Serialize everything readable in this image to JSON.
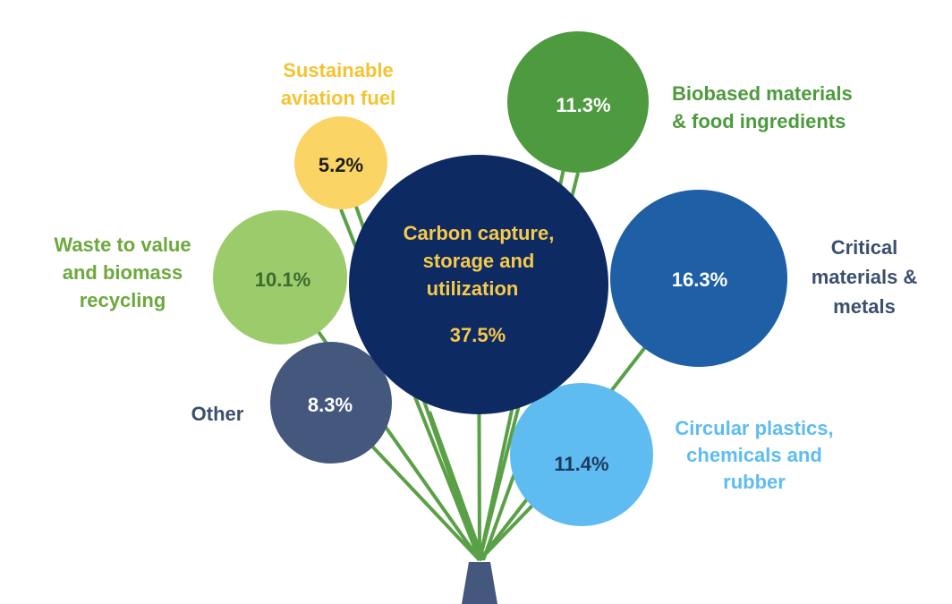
{
  "chart_data": {
    "type": "bubble",
    "unit": "%",
    "items": [
      {
        "label_lines": [
          "Carbon capture,",
          "storage and",
          "utilization"
        ],
        "value_text": "37.5%",
        "value": 37.5,
        "color": "#0d2a62",
        "text_color": "#f7c94a"
      },
      {
        "label_lines": [
          "Critical",
          "materials &",
          "metals"
        ],
        "value_text": "16.3%",
        "value": 16.3,
        "color": "#1f5fa5",
        "text_color": "#ffffff",
        "label_color": "#3b4f6e"
      },
      {
        "label_lines": [
          "Circular plastics,",
          "chemicals and",
          "rubber"
        ],
        "value_text": "11.4%",
        "value": 11.4,
        "color": "#5ebcf0",
        "text_color": "#1e3a5f",
        "label_color": "#5ebcf0"
      },
      {
        "label_lines": [
          "Biobased materials",
          "& food ingredients"
        ],
        "value_text": "11.3%",
        "value": 11.3,
        "color": "#4e9a3e",
        "text_color": "#ffffff",
        "label_color": "#4e9a3e"
      },
      {
        "label_lines": [
          "Waste to value",
          "and biomass",
          "recycling"
        ],
        "value_text": "10.1%",
        "value": 10.1,
        "color": "#9ccb6b",
        "text_color": "#3c6b2e",
        "label_color": "#6da83d"
      },
      {
        "label_lines": [
          "Other"
        ],
        "value_text": "8.3%",
        "value": 8.3,
        "color": "#44577c",
        "text_color": "#ffffff",
        "label_color": "#3b4f6e"
      },
      {
        "label_lines": [
          "Sustainable",
          "aviation fuel"
        ],
        "value_text": "5.2%",
        "value": 5.2,
        "color": "#fad464",
        "text_color": "#1c1c1c",
        "label_color": "#f4c430"
      }
    ],
    "stem_color": "#5aa046",
    "base_color": "#44577c"
  }
}
